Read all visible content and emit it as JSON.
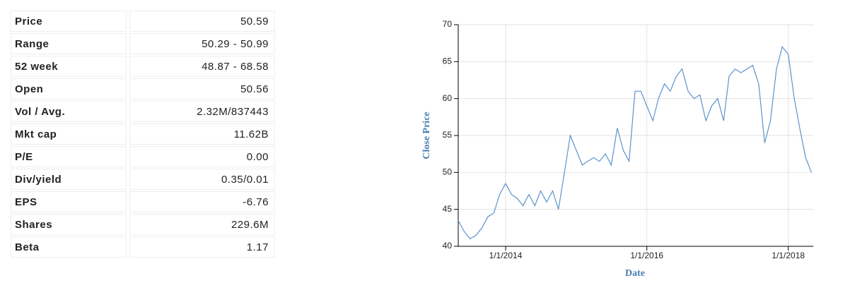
{
  "table": {
    "rows": [
      [
        "Price",
        "50.59"
      ],
      [
        "Range",
        "50.29 - 50.99"
      ],
      [
        "52 week",
        "48.87 - 68.58"
      ],
      [
        "Open",
        "50.56"
      ],
      [
        "Vol / Avg.",
        "2.32M/837443"
      ],
      [
        "Mkt cap",
        "11.62B"
      ],
      [
        "P/E",
        "0.00"
      ],
      [
        "Div/yield",
        "0.35/0.01"
      ],
      [
        "EPS",
        "-6.76"
      ],
      [
        "Shares",
        "229.6M"
      ],
      [
        "Beta",
        "1.17"
      ]
    ]
  },
  "chart_data": {
    "type": "line",
    "ylabel": "Close Price",
    "xlabel": "Date",
    "color": "#5b93cc",
    "grid": true,
    "x": [
      "5/1/2013",
      "6/1/2013",
      "7/1/2013",
      "8/1/2013",
      "9/1/2013",
      "10/1/2013",
      "11/1/2013",
      "12/1/2013",
      "1/1/2014",
      "2/1/2014",
      "3/1/2014",
      "4/1/2014",
      "5/1/2014",
      "6/1/2014",
      "7/1/2014",
      "8/1/2014",
      "9/1/2014",
      "10/1/2014",
      "11/1/2014",
      "12/1/2014",
      "1/1/2015",
      "2/1/2015",
      "3/1/2015",
      "4/1/2015",
      "5/1/2015",
      "6/1/2015",
      "7/1/2015",
      "8/1/2015",
      "9/1/2015",
      "10/1/2015",
      "11/1/2015",
      "12/1/2015",
      "1/1/2016",
      "2/1/2016",
      "3/1/2016",
      "4/1/2016",
      "5/1/2016",
      "6/1/2016",
      "7/1/2016",
      "8/1/2016",
      "9/1/2016",
      "10/1/2016",
      "11/1/2016",
      "12/1/2016",
      "1/1/2017",
      "2/1/2017",
      "3/1/2017",
      "4/1/2017",
      "5/1/2017",
      "6/1/2017",
      "7/1/2017",
      "8/1/2017",
      "9/1/2017",
      "10/1/2017",
      "11/1/2017",
      "12/1/2017",
      "1/1/2018",
      "2/1/2018",
      "3/1/2018",
      "4/1/2018",
      "5/1/2018"
    ],
    "values": [
      43.5,
      42,
      41,
      41.5,
      42.5,
      44,
      44.5,
      47,
      48.5,
      47,
      46.5,
      45.5,
      47,
      45.5,
      47.5,
      46,
      47.5,
      45,
      50,
      55,
      53,
      51,
      51.5,
      52,
      51.5,
      52.5,
      51,
      56,
      53,
      51.5,
      61,
      61,
      59,
      57,
      60,
      62,
      61,
      63,
      64,
      61,
      60,
      60.5,
      57,
      59,
      60,
      57,
      63,
      64,
      63.5,
      64,
      64.5,
      62,
      54,
      57,
      64,
      67,
      66,
      60,
      56,
      52,
      50
    ],
    "xlim": [
      "5/1/2013",
      "5/10/2018"
    ],
    "xticks": [
      "1/1/2014",
      "1/1/2016",
      "1/1/2018"
    ],
    "ylim": [
      40,
      70
    ],
    "yticks": [
      40,
      45,
      50,
      55,
      60,
      65,
      70
    ]
  }
}
